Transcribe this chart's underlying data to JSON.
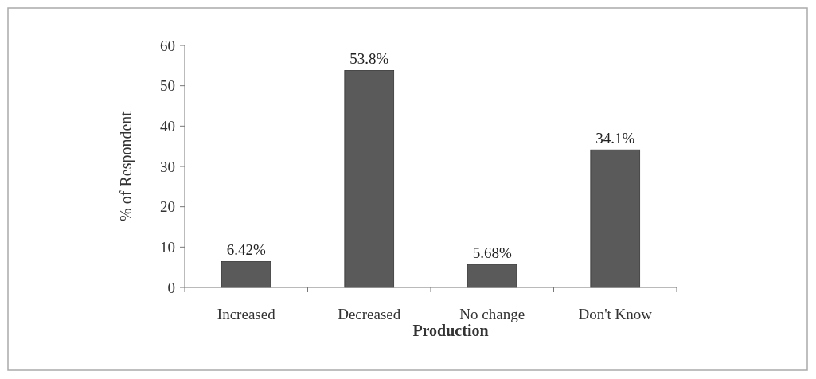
{
  "chart_data": {
    "type": "bar",
    "xlabel": "Production",
    "ylabel": "% of Respondent",
    "categories": [
      "Increased",
      "Decreased",
      "No change",
      "Don't Know"
    ],
    "values": [
      6.42,
      53.8,
      5.68,
      34.1
    ],
    "value_labels": [
      "6.42%",
      "53.8%",
      "5.68%",
      "34.1%"
    ],
    "color": "#5a5a5a",
    "ylim": [
      0,
      60
    ],
    "yticks": [
      0,
      10,
      20,
      30,
      40,
      50,
      60
    ],
    "grid": false
  }
}
